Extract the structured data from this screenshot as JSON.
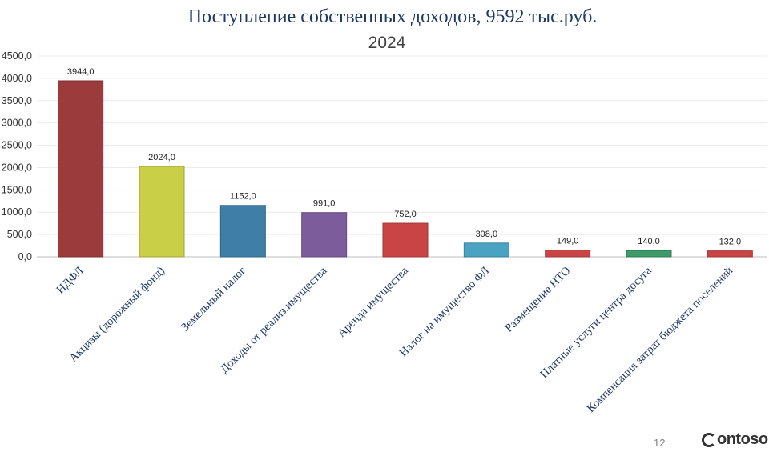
{
  "title": "Поступление собственных доходов,  9592 тыс.руб.",
  "subtitle": "2024",
  "page_number": "12",
  "logo_text": "ontoso",
  "chart_data": {
    "type": "bar",
    "categories": [
      "НДФЛ",
      "Акцизы (дорожный фонд)",
      "Земельный налог",
      "Доходы от реализ.имущества",
      "Аренда имущества",
      "Налог на имущество ФЛ",
      "Размещение НТО",
      "Платные услуги центра досуга",
      "Компенсация затрат бюджета поселений"
    ],
    "values": [
      3944.0,
      2024.0,
      1152.0,
      991.0,
      752.0,
      308.0,
      149.0,
      140.0,
      132.0
    ],
    "value_labels": [
      "3944,0",
      "2024,0",
      "1152,0",
      "991,0",
      "752,0",
      "308,0",
      "149,0",
      "140,0",
      "132,0"
    ],
    "colors": [
      "#9b3b3b",
      "#c9cf46",
      "#3f7ea6",
      "#7d5c9c",
      "#c94444",
      "#4aa3c2",
      "#c94444",
      "#3d9a6a",
      "#c94444"
    ],
    "yticks": [
      "0,0",
      "500,0",
      "1000,0",
      "1500,0",
      "2000,0",
      "2500,0",
      "3000,0",
      "3500,0",
      "4000,0",
      "4500,0"
    ],
    "ylim": [
      0,
      4500
    ],
    "grid": true,
    "legend": false
  }
}
